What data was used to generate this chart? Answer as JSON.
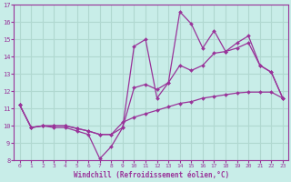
{
  "xlabel": "Windchill (Refroidissement éolien,°C)",
  "xlim": [
    -0.5,
    23.5
  ],
  "ylim": [
    8,
    17
  ],
  "yticks": [
    8,
    9,
    10,
    11,
    12,
    13,
    14,
    15,
    16,
    17
  ],
  "xticks": [
    0,
    1,
    2,
    3,
    4,
    5,
    6,
    7,
    8,
    9,
    10,
    11,
    12,
    13,
    14,
    15,
    16,
    17,
    18,
    19,
    20,
    21,
    22,
    23
  ],
  "bg_color": "#c8ede8",
  "grid_color": "#b0d8d0",
  "line_color": "#993399",
  "line1_y": [
    11.2,
    9.9,
    10.0,
    9.9,
    9.9,
    9.7,
    9.5,
    8.1,
    8.8,
    9.9,
    14.6,
    15.0,
    11.6,
    12.5,
    16.6,
    15.9,
    14.5,
    15.5,
    14.3,
    14.8,
    15.2,
    13.5,
    13.1,
    11.6
  ],
  "line2_y": [
    11.2,
    9.9,
    10.0,
    10.0,
    10.0,
    9.85,
    9.7,
    9.5,
    9.5,
    9.9,
    12.2,
    12.4,
    12.1,
    12.5,
    13.5,
    13.2,
    13.5,
    14.2,
    14.3,
    14.5,
    14.8,
    13.5,
    13.1,
    11.6
  ],
  "line3_y": [
    11.2,
    9.9,
    10.0,
    10.0,
    10.0,
    9.85,
    9.7,
    9.5,
    9.5,
    10.2,
    10.5,
    10.7,
    10.9,
    11.1,
    11.3,
    11.4,
    11.6,
    11.7,
    11.8,
    11.9,
    11.95,
    11.95,
    11.95,
    11.6
  ]
}
